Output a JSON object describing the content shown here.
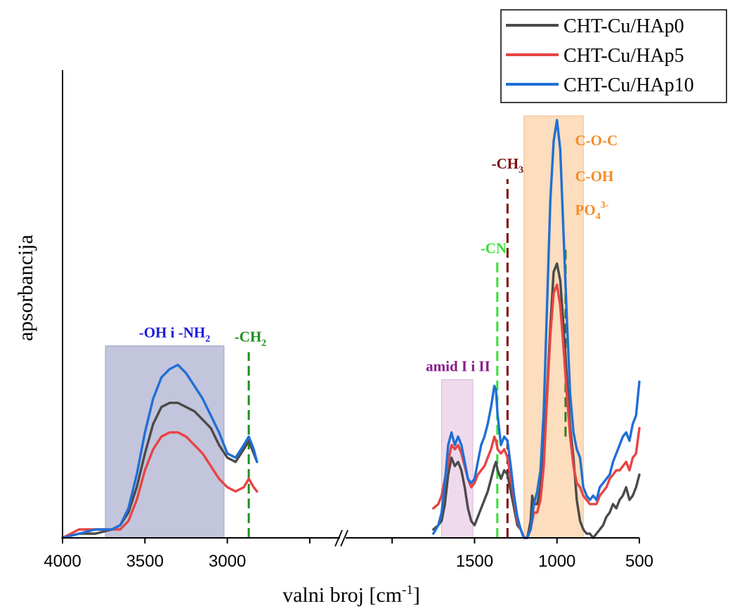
{
  "chart_data": {
    "type": "line",
    "xlabel": "valni broj [cm",
    "xlabel_sup": "-1",
    "xlabel_end": "]",
    "ylabel": "apsorbancija",
    "xlim": [
      4000,
      500
    ],
    "x_axis_reversed": true,
    "x_axis_break": [
      2800,
      1750
    ],
    "ylim": [
      0,
      1
    ],
    "x_ticks": [
      4000,
      3500,
      3000,
      2500,
      2000,
      1500,
      1000,
      500
    ],
    "x_tick_labels": [
      "4000",
      "3500",
      "3000",
      "",
      "",
      "1500",
      "1000",
      "500"
    ],
    "legend_placement": "top-right",
    "series": [
      {
        "name": "CHT-Cu/HAp0",
        "color": "#4a4a4a",
        "x": [
          4000,
          3900,
          3800,
          3700,
          3650,
          3600,
          3550,
          3500,
          3450,
          3400,
          3350,
          3300,
          3250,
          3200,
          3150,
          3100,
          3050,
          3000,
          2950,
          2900,
          2870,
          2840,
          2820,
          1750,
          1720,
          1700,
          1680,
          1660,
          1640,
          1620,
          1600,
          1580,
          1560,
          1540,
          1520,
          1500,
          1480,
          1460,
          1440,
          1420,
          1400,
          1380,
          1370,
          1360,
          1340,
          1320,
          1300,
          1280,
          1260,
          1240,
          1220,
          1200,
          1180,
          1160,
          1150,
          1140,
          1120,
          1100,
          1080,
          1060,
          1040,
          1020,
          1000,
          980,
          960,
          940,
          920,
          900,
          880,
          860,
          840,
          820,
          800,
          780,
          760,
          740,
          720,
          700,
          680,
          660,
          640,
          620,
          600,
          580,
          560,
          540,
          520,
          500
        ],
        "y": [
          0.0,
          0.01,
          0.01,
          0.02,
          0.03,
          0.06,
          0.12,
          0.2,
          0.27,
          0.31,
          0.32,
          0.32,
          0.31,
          0.3,
          0.28,
          0.26,
          0.22,
          0.19,
          0.18,
          0.21,
          0.23,
          0.2,
          0.18,
          0.02,
          0.03,
          0.04,
          0.08,
          0.15,
          0.19,
          0.17,
          0.18,
          0.16,
          0.12,
          0.07,
          0.04,
          0.03,
          0.05,
          0.07,
          0.09,
          0.11,
          0.14,
          0.17,
          0.18,
          0.16,
          0.14,
          0.16,
          0.15,
          0.11,
          0.07,
          0.03,
          0.02,
          0.0,
          0.0,
          0.04,
          0.1,
          0.08,
          0.08,
          0.12,
          0.2,
          0.35,
          0.5,
          0.63,
          0.65,
          0.61,
          0.5,
          0.38,
          0.26,
          0.19,
          0.09,
          0.04,
          0.02,
          0.01,
          0.01,
          0.0,
          0.01,
          0.02,
          0.03,
          0.05,
          0.06,
          0.08,
          0.07,
          0.09,
          0.1,
          0.12,
          0.09,
          0.1,
          0.12,
          0.15
        ]
      },
      {
        "name": "CHT-Cu/HAp5",
        "color": "#e84343",
        "x": [
          4000,
          3900,
          3800,
          3700,
          3650,
          3600,
          3550,
          3500,
          3450,
          3400,
          3350,
          3300,
          3250,
          3200,
          3150,
          3100,
          3050,
          3000,
          2950,
          2900,
          2870,
          2840,
          2820,
          1750,
          1720,
          1700,
          1680,
          1660,
          1640,
          1620,
          1600,
          1580,
          1560,
          1540,
          1520,
          1500,
          1480,
          1460,
          1440,
          1420,
          1400,
          1380,
          1370,
          1360,
          1340,
          1320,
          1300,
          1280,
          1260,
          1240,
          1220,
          1200,
          1180,
          1160,
          1150,
          1140,
          1120,
          1100,
          1080,
          1060,
          1040,
          1020,
          1000,
          980,
          960,
          940,
          920,
          900,
          880,
          860,
          840,
          820,
          800,
          780,
          760,
          740,
          720,
          700,
          680,
          660,
          640,
          620,
          600,
          580,
          560,
          540,
          520,
          500
        ],
        "y": [
          0.0,
          0.02,
          0.02,
          0.02,
          0.02,
          0.04,
          0.09,
          0.16,
          0.21,
          0.24,
          0.25,
          0.25,
          0.24,
          0.22,
          0.2,
          0.17,
          0.14,
          0.12,
          0.11,
          0.12,
          0.14,
          0.12,
          0.11,
          0.07,
          0.08,
          0.1,
          0.14,
          0.18,
          0.22,
          0.21,
          0.22,
          0.2,
          0.17,
          0.14,
          0.12,
          0.13,
          0.15,
          0.16,
          0.17,
          0.19,
          0.21,
          0.24,
          0.23,
          0.21,
          0.2,
          0.21,
          0.19,
          0.14,
          0.09,
          0.04,
          0.02,
          0.0,
          0.0,
          0.02,
          0.04,
          0.06,
          0.06,
          0.09,
          0.17,
          0.33,
          0.48,
          0.58,
          0.6,
          0.55,
          0.45,
          0.34,
          0.24,
          0.17,
          0.13,
          0.12,
          0.1,
          0.09,
          0.08,
          0.08,
          0.08,
          0.1,
          0.11,
          0.12,
          0.14,
          0.15,
          0.16,
          0.16,
          0.17,
          0.18,
          0.16,
          0.19,
          0.2,
          0.26
        ]
      },
      {
        "name": "CHT-Cu/HAp10",
        "color": "#1f6fd6",
        "x": [
          4000,
          3900,
          3800,
          3700,
          3650,
          3600,
          3550,
          3500,
          3450,
          3400,
          3350,
          3300,
          3250,
          3200,
          3150,
          3100,
          3050,
          3000,
          2950,
          2900,
          2870,
          2840,
          2820,
          1750,
          1720,
          1700,
          1680,
          1660,
          1640,
          1620,
          1600,
          1580,
          1560,
          1540,
          1520,
          1500,
          1480,
          1460,
          1440,
          1420,
          1400,
          1380,
          1370,
          1360,
          1340,
          1320,
          1300,
          1280,
          1260,
          1240,
          1220,
          1200,
          1180,
          1160,
          1150,
          1140,
          1120,
          1100,
          1080,
          1060,
          1040,
          1020,
          1000,
          980,
          960,
          940,
          920,
          900,
          880,
          860,
          840,
          820,
          800,
          780,
          760,
          740,
          720,
          700,
          680,
          660,
          640,
          620,
          600,
          580,
          560,
          540,
          520,
          500
        ],
        "y": [
          0.0,
          0.01,
          0.02,
          0.02,
          0.03,
          0.07,
          0.15,
          0.25,
          0.33,
          0.38,
          0.4,
          0.41,
          0.39,
          0.36,
          0.33,
          0.29,
          0.25,
          0.2,
          0.19,
          0.22,
          0.24,
          0.21,
          0.18,
          0.01,
          0.03,
          0.06,
          0.13,
          0.22,
          0.25,
          0.22,
          0.24,
          0.22,
          0.18,
          0.14,
          0.13,
          0.14,
          0.18,
          0.22,
          0.24,
          0.27,
          0.31,
          0.36,
          0.35,
          0.29,
          0.22,
          0.24,
          0.23,
          0.17,
          0.1,
          0.05,
          0.02,
          0.0,
          0.0,
          0.02,
          0.05,
          0.08,
          0.11,
          0.16,
          0.3,
          0.55,
          0.8,
          0.94,
          0.99,
          0.92,
          0.72,
          0.52,
          0.34,
          0.25,
          0.21,
          0.19,
          0.12,
          0.1,
          0.09,
          0.1,
          0.09,
          0.12,
          0.13,
          0.14,
          0.15,
          0.18,
          0.2,
          0.22,
          0.24,
          0.25,
          0.23,
          0.27,
          0.29,
          0.37
        ]
      }
    ],
    "bands": [
      {
        "id": "oh-nh2",
        "x_from": 3740,
        "x_to": 3020,
        "y_top": 0.455,
        "color": "#b8bbd6",
        "border": "#9fa3c6",
        "label": "-OH i -NH",
        "label_sub": "2",
        "label_color": "#1a1adb",
        "label_x": 3320,
        "label_y": 0.475
      },
      {
        "id": "amid",
        "x_from": 1700,
        "x_to": 1510,
        "y_top": 0.375,
        "color": "#ecd3ea",
        "border": "#d9b5d6",
        "label": "amid I i II",
        "label_sub": "",
        "label_color": "#8b1c8b",
        "label_x": 1600,
        "label_y": 0.395
      },
      {
        "id": "coc",
        "x_from": 1200,
        "x_to": 840,
        "y_top": 1.0,
        "color": "#fbd7b2",
        "border": "#f4b98a",
        "label": "",
        "label_sub": "",
        "label_color": "#f28c28",
        "label_x": 0,
        "label_y": 0
      }
    ],
    "annotations": [
      {
        "id": "coc",
        "text": "C-O-C",
        "sup": "",
        "sub": "",
        "color": "#f28c28",
        "x": 890,
        "y": 0.93
      },
      {
        "id": "coh",
        "text": "C-OH",
        "sup": "",
        "sub": "",
        "color": "#f28c28",
        "x": 890,
        "y": 0.845
      },
      {
        "id": "po4",
        "text": "PO",
        "sup": "3-",
        "sub": "4",
        "color": "#f28c28",
        "x": 890,
        "y": 0.765
      }
    ],
    "markers": [
      {
        "id": "ch2",
        "x": 2870,
        "y_from": 0.0,
        "y_to": 0.44,
        "color": "#1e8f1e",
        "label": "-CH",
        "label_sub": "2",
        "label_x": 2860,
        "label_y": 0.465
      },
      {
        "id": "cn",
        "x": 1362,
        "y_from": 0.0,
        "y_to": 0.66,
        "color": "#33e033",
        "label": "-CN",
        "label_sub": "",
        "label_x": 1385,
        "label_y": 0.675
      },
      {
        "id": "ch3",
        "x": 1300,
        "y_from": 0.0,
        "y_to": 0.85,
        "color": "#7a0a0a",
        "label": "-CH",
        "label_sub": "3",
        "label_x": 1300,
        "label_y": 0.875
      },
      {
        "id": "po4-line",
        "x": 948,
        "y_from": 0.24,
        "y_to": 0.69,
        "color": "#2e7d1e",
        "label": "",
        "label_sub": "",
        "label_x": 0,
        "label_y": 0
      }
    ]
  }
}
